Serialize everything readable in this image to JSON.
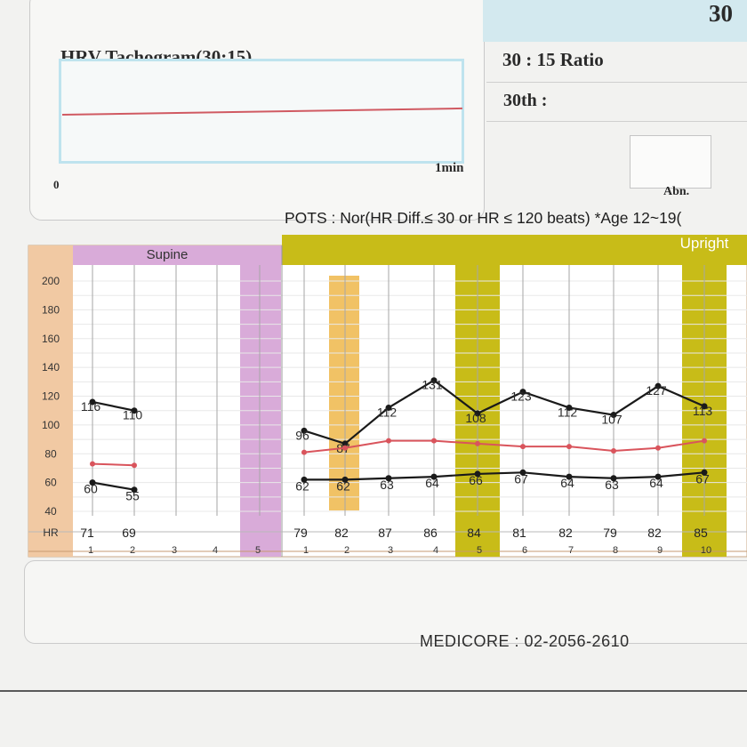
{
  "tachogram": {
    "title": "HRV Tachogram(30:15)",
    "x_start": "0",
    "x_end": "1min"
  },
  "ratio_panel": {
    "ratio_number": "30",
    "ratio_label": "30 : 15 Ratio",
    "th_label": "30th :",
    "abn_label": "Abn."
  },
  "pots_text": "POTS : Nor(HR Diff.≤ 30 or HR ≤ 120 beats) *Age 12~19(",
  "footer": {
    "company": "MEDICORE : 02-2056-2610"
  },
  "colors": {
    "supine": "#d9abd9",
    "upright": "#c8bc18",
    "highlight": "#f1c265",
    "axis_bg": "#f1c9a3",
    "pulse_line": "#1a1a1a",
    "mean_line": "#d9545c"
  },
  "chart_data": {
    "type": "line",
    "title": "",
    "ylabel": "",
    "y_ticks": [
      200,
      180,
      160,
      140,
      120,
      100,
      80,
      60,
      40
    ],
    "ylim": [
      40,
      200
    ],
    "row_label": "HR",
    "phases": [
      {
        "name": "Supine",
        "minutes": [
          "1",
          "2",
          "3",
          "4",
          "5"
        ]
      },
      {
        "name": "Upright",
        "minutes": [
          "1",
          "2",
          "3",
          "4",
          "5",
          "6",
          "7",
          "8",
          "9",
          "10"
        ]
      }
    ],
    "supine": {
      "hr": [
        "71",
        "69",
        "",
        "",
        ""
      ],
      "max": [
        116,
        110
      ],
      "mean": [
        73,
        72
      ],
      "min": [
        60,
        55
      ]
    },
    "upright": {
      "hr": [
        "79",
        "82",
        "87",
        "86",
        "84",
        "81",
        "82",
        "79",
        "82",
        "85"
      ],
      "max": [
        96,
        87,
        112,
        131,
        108,
        123,
        112,
        107,
        127,
        113
      ],
      "mean": [
        81,
        84,
        89,
        89,
        87,
        85,
        85,
        82,
        84,
        89
      ],
      "min": [
        62,
        62,
        63,
        64,
        66,
        67,
        64,
        63,
        64,
        67
      ],
      "highlight_minutes": [
        5,
        10
      ],
      "shaded_minute": 2
    }
  }
}
